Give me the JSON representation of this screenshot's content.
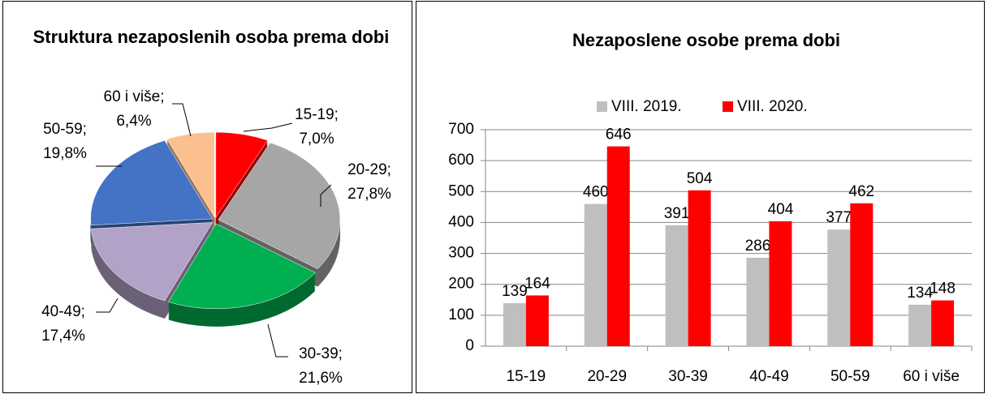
{
  "chart_data": [
    {
      "type": "pie",
      "title": "Struktura nezaposlenih osoba prema dobi",
      "categories": [
        "15-19;",
        "20-29;",
        "30-39;",
        "40-49;",
        "50-59;",
        "60 i više;"
      ],
      "values": [
        7.0,
        27.8,
        21.6,
        17.4,
        19.8,
        6.4
      ],
      "value_labels": [
        "7,0%",
        "27,8%",
        "21,6%",
        "17,4%",
        "19,8%",
        "6,4%"
      ],
      "colors": [
        "#ff0000",
        "#a6a6a6",
        "#00b050",
        "#b3a2c7",
        "#4472c4",
        "#fac090"
      ]
    },
    {
      "type": "bar",
      "title": "Nezaposlene osobe prema dobi",
      "categories": [
        "15-19",
        "20-29",
        "30-39",
        "40-49",
        "50-59",
        "60 i više"
      ],
      "series": [
        {
          "name": "VIII. 2019.",
          "color": "#bfbfbf",
          "values": [
            139,
            460,
            391,
            286,
            377,
            134
          ]
        },
        {
          "name": "VIII. 2020.",
          "color": "#ff0000",
          "values": [
            164,
            646,
            504,
            404,
            462,
            148
          ]
        }
      ],
      "ylim": [
        0,
        700
      ],
      "yticks": [
        0,
        100,
        200,
        300,
        400,
        500,
        600,
        700
      ],
      "grid": true,
      "legend": "top"
    }
  ]
}
